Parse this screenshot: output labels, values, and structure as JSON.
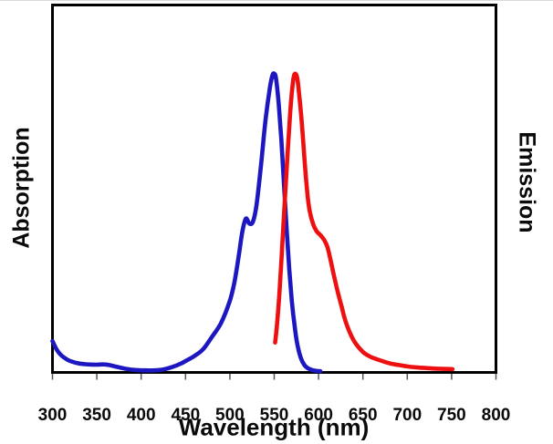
{
  "figure": {
    "background": "#ffffff",
    "left_axis_title": "Absorption",
    "right_axis_title": "Emission",
    "x_axis_title": "Wavelength (nm)"
  },
  "chart_data": {
    "type": "line",
    "title": "",
    "xlabel": "Wavelength (nm)",
    "ylabel_left": "Absorption",
    "ylabel_right": "Emission",
    "xlim": [
      300,
      800
    ],
    "ylim": [
      0,
      1.23
    ],
    "x_ticks": [
      300,
      350,
      400,
      450,
      500,
      550,
      600,
      650,
      700,
      750,
      800
    ],
    "grid": false,
    "legend": "none",
    "frame": "full-box",
    "axis_color": "#000000",
    "series": [
      {
        "name": "Absorption",
        "color": "#1c17c0",
        "x": [
          300,
          305,
          310,
          315,
          320,
          330,
          340,
          350,
          358,
          365,
          375,
          385,
          395,
          405,
          415,
          425,
          435,
          445,
          450,
          460,
          470,
          480,
          490,
          500,
          505,
          510,
          514,
          518,
          522,
          526,
          530,
          535,
          540,
          545,
          548,
          550,
          552,
          555,
          558,
          561,
          564,
          567,
          570,
          573,
          576,
          580,
          584,
          588,
          593,
          598,
          602
        ],
        "y": [
          0.105,
          0.075,
          0.057,
          0.046,
          0.038,
          0.03,
          0.027,
          0.026,
          0.027,
          0.024,
          0.017,
          0.011,
          0.008,
          0.007,
          0.007,
          0.01,
          0.018,
          0.03,
          0.038,
          0.055,
          0.078,
          0.12,
          0.165,
          0.24,
          0.3,
          0.39,
          0.47,
          0.515,
          0.498,
          0.505,
          0.56,
          0.69,
          0.84,
          0.95,
          0.995,
          1.0,
          0.985,
          0.9,
          0.78,
          0.63,
          0.48,
          0.345,
          0.235,
          0.155,
          0.095,
          0.048,
          0.025,
          0.014,
          0.008,
          0.005,
          0.004
        ]
      },
      {
        "name": "Emission",
        "color": "#ee1010",
        "x": [
          551,
          553,
          556,
          559,
          562,
          565,
          568,
          570,
          572,
          574,
          576,
          578,
          581,
          584,
          587,
          590,
          594,
          598,
          602,
          606,
          610,
          614,
          618,
          622,
          626,
          630,
          635,
          640,
          645,
          651,
          658,
          665,
          673,
          681,
          690,
          700,
          710,
          720,
          730,
          740,
          751
        ],
        "y": [
          0.1,
          0.155,
          0.27,
          0.42,
          0.58,
          0.73,
          0.87,
          0.94,
          0.99,
          1.0,
          0.985,
          0.935,
          0.84,
          0.72,
          0.61,
          0.54,
          0.495,
          0.472,
          0.46,
          0.445,
          0.42,
          0.37,
          0.315,
          0.265,
          0.22,
          0.175,
          0.135,
          0.105,
          0.085,
          0.066,
          0.053,
          0.045,
          0.037,
          0.03,
          0.025,
          0.02,
          0.017,
          0.015,
          0.013,
          0.012,
          0.011
        ]
      }
    ]
  }
}
